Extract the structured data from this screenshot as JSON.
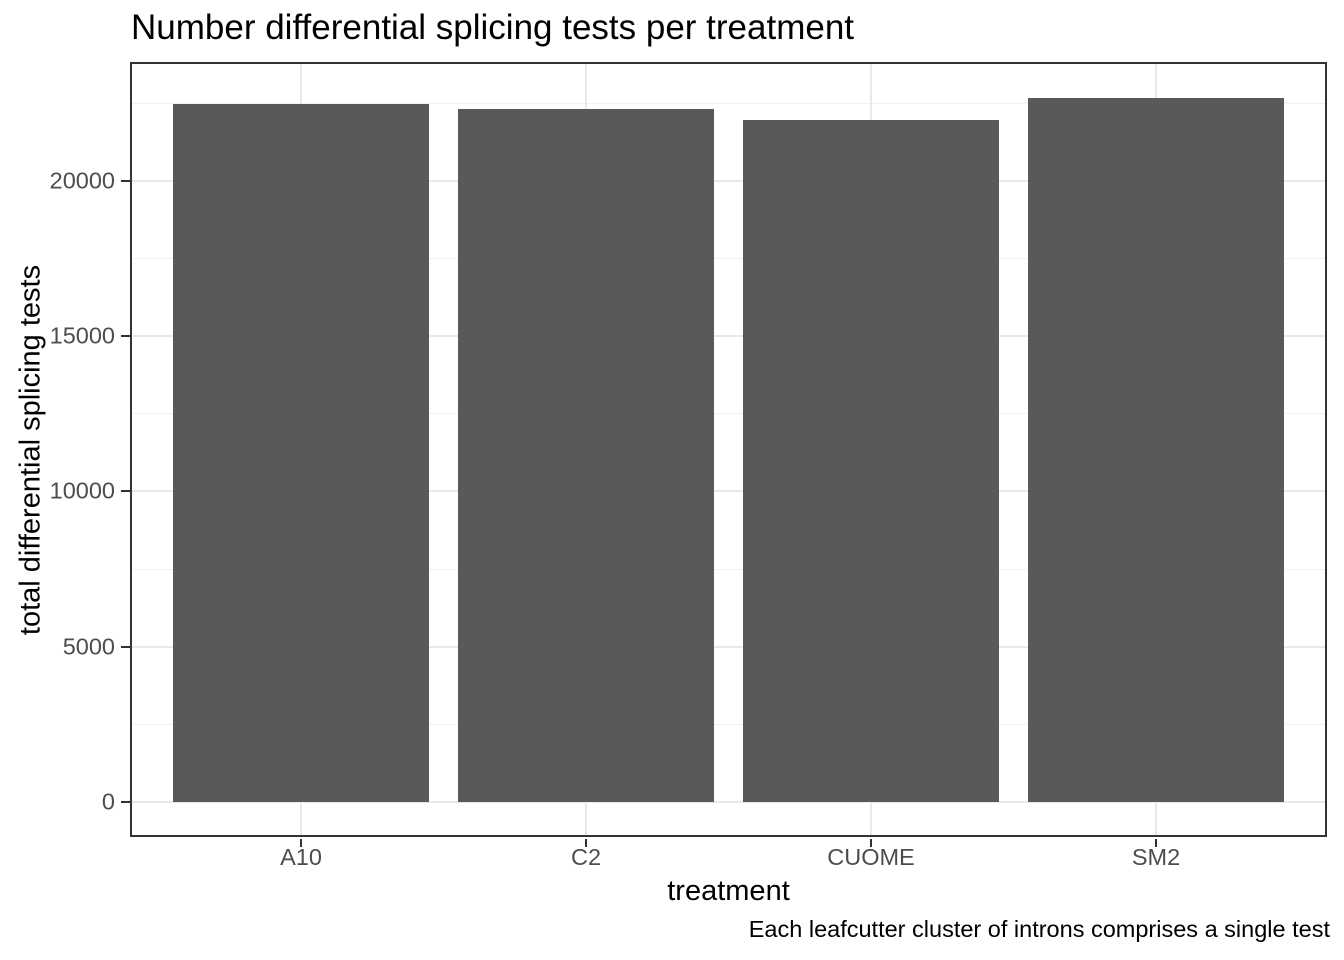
{
  "chart_data": {
    "type": "bar",
    "title": "Number differential splicing tests per treatment",
    "xlabel": "treatment",
    "ylabel": "total differential splicing tests",
    "caption": "Each leafcutter cluster of introns comprises a single test",
    "categories": [
      "A10",
      "C2",
      "CUOME",
      "SM2"
    ],
    "values": [
      22470,
      22310,
      21960,
      22690
    ],
    "yticks": [
      0,
      5000,
      10000,
      15000,
      20000
    ],
    "yticks_minor": [
      2500,
      7500,
      12500,
      17500,
      22500
    ],
    "y_domain": [
      -1134,
      23836
    ],
    "bar_width_units": 0.9,
    "legend": "none",
    "grid": {
      "horizontal_major": true,
      "horizontal_minor": true,
      "vertical_major": true
    },
    "colors": {
      "bar_fill": "#595959",
      "grid_major": "#e8e8e8",
      "grid_minor": "#f0f0f0",
      "panel_border": "#333333",
      "axis_tick": "#333333",
      "axis_text": "#4d4d4d",
      "title_text": "#000000",
      "background": "#ffffff"
    }
  }
}
